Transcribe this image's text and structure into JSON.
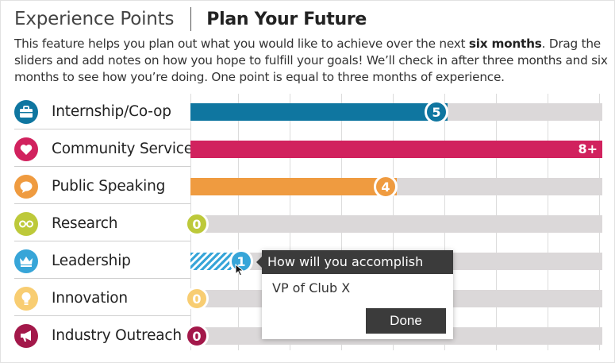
{
  "header": {
    "section": "Experience Points",
    "title": "Plan Your Future"
  },
  "description": {
    "before": "This feature helps you plan out what you would like to achieve over the next ",
    "bold": "six months",
    "after": ". Drag the sliders and add notes on how you hope to fulfill your goals! We’ll check in after three months and six months to see how you’re doing. One point is equal to three months of experience."
  },
  "scale": {
    "max_points": 8
  },
  "categories": [
    {
      "label": "Internship/Co-op",
      "value": "5",
      "points": 5,
      "color": "#0f76a0",
      "icon": "briefcase-icon"
    },
    {
      "label": "Community Service",
      "value": "8+",
      "points": 8,
      "color": "#d1225e",
      "icon": "heart-icon"
    },
    {
      "label": "Public Speaking",
      "value": "4",
      "points": 4,
      "color": "#ef9b40",
      "icon": "speech-bubble-icon"
    },
    {
      "label": "Research",
      "value": "0",
      "points": 0,
      "color": "#bdc93a",
      "icon": "glasses-icon"
    },
    {
      "label": "Leadership",
      "value": "1",
      "points": 1,
      "color": "#37a5d8",
      "icon": "crown-icon"
    },
    {
      "label": "Innovation",
      "value": "0",
      "points": 0,
      "color": "#f8cd72",
      "icon": "lightbulb-icon"
    },
    {
      "label": "Industry Outreach",
      "value": "0",
      "points": 0,
      "color": "#a3184a",
      "icon": "megaphone-icon"
    }
  ],
  "tooltip": {
    "question": "How will you accomplish this?",
    "note": "VP of Club X",
    "done_label": "Done"
  }
}
